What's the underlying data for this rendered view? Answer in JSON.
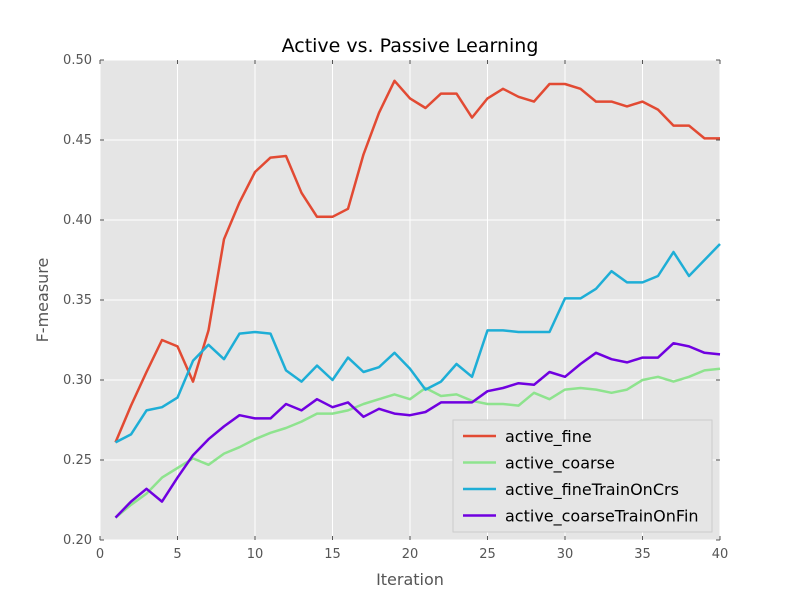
{
  "chart_data": {
    "type": "line",
    "title": "Active vs. Passive Learning",
    "xlabel": "Iteration",
    "ylabel": "F-measure",
    "xlim": [
      0,
      40
    ],
    "ylim": [
      0.2,
      0.5
    ],
    "xticks": [
      0,
      5,
      10,
      15,
      20,
      25,
      30,
      35,
      40
    ],
    "xtick_labels": [
      "0",
      "5",
      "10",
      "15",
      "20",
      "25",
      "30",
      "35",
      "40"
    ],
    "yticks": [
      0.2,
      0.25,
      0.3,
      0.35,
      0.4,
      0.45,
      0.5
    ],
    "ytick_labels": [
      "0.20",
      "0.25",
      "0.30",
      "0.35",
      "0.40",
      "0.45",
      "0.50"
    ],
    "grid": true,
    "legend_position": "lower-right",
    "x": [
      1,
      2,
      3,
      4,
      5,
      6,
      7,
      8,
      9,
      10,
      11,
      12,
      13,
      14,
      15,
      16,
      17,
      18,
      19,
      20,
      21,
      22,
      23,
      24,
      25,
      26,
      27,
      28,
      29,
      30,
      31,
      32,
      33,
      34,
      35,
      36,
      37,
      38,
      39,
      40
    ],
    "series": [
      {
        "name": "active_fine",
        "color": "#e24a33",
        "values": [
          0.261,
          0.284,
          0.305,
          0.325,
          0.321,
          0.299,
          0.331,
          0.388,
          0.411,
          0.43,
          0.439,
          0.44,
          0.417,
          0.402,
          0.402,
          0.407,
          0.441,
          0.467,
          0.487,
          0.476,
          0.47,
          0.479,
          0.479,
          0.464,
          0.476,
          0.482,
          0.477,
          0.474,
          0.485,
          0.485,
          0.482,
          0.474,
          0.474,
          0.471,
          0.474,
          0.469,
          0.459,
          0.459,
          0.451,
          0.451
        ]
      },
      {
        "name": "active_coarse",
        "color": "#8ee38e",
        "values": [
          0.214,
          0.222,
          0.229,
          0.239,
          0.245,
          0.251,
          0.247,
          0.254,
          0.258,
          0.263,
          0.267,
          0.27,
          0.274,
          0.279,
          0.279,
          0.281,
          0.285,
          0.288,
          0.291,
          0.288,
          0.295,
          0.29,
          0.291,
          0.287,
          0.285,
          0.285,
          0.284,
          0.292,
          0.288,
          0.294,
          0.295,
          0.294,
          0.292,
          0.294,
          0.3,
          0.302,
          0.299,
          0.302,
          0.306,
          0.307
        ]
      },
      {
        "name": "active_fineTrainOnCrs",
        "color": "#1eaed6",
        "values": [
          0.261,
          0.266,
          0.281,
          0.283,
          0.289,
          0.312,
          0.322,
          0.313,
          0.329,
          0.33,
          0.329,
          0.306,
          0.299,
          0.309,
          0.3,
          0.314,
          0.305,
          0.308,
          0.317,
          0.307,
          0.294,
          0.299,
          0.31,
          0.302,
          0.331,
          0.331,
          0.33,
          0.33,
          0.33,
          0.351,
          0.351,
          0.357,
          0.368,
          0.361,
          0.361,
          0.365,
          0.38,
          0.365,
          0.375,
          0.385
        ]
      },
      {
        "name": "active_coarseTrainOnFin",
        "color": "#7000e0",
        "values": [
          0.214,
          0.224,
          0.232,
          0.224,
          0.239,
          0.253,
          0.263,
          0.271,
          0.278,
          0.276,
          0.276,
          0.285,
          0.281,
          0.288,
          0.283,
          0.286,
          0.277,
          0.282,
          0.279,
          0.278,
          0.28,
          0.286,
          0.286,
          0.286,
          0.293,
          0.295,
          0.298,
          0.297,
          0.305,
          0.302,
          0.31,
          0.317,
          0.313,
          0.311,
          0.314,
          0.314,
          0.323,
          0.321,
          0.317,
          0.316
        ]
      }
    ]
  }
}
